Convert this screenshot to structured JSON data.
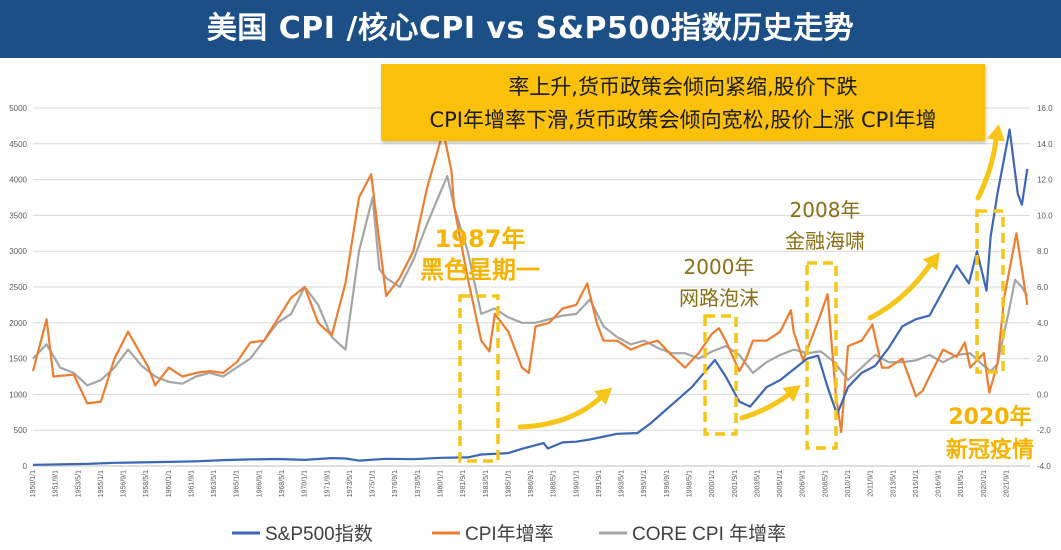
{
  "title": "美国 CPI /核心CPI vs S&P500指数历史走势",
  "callout": {
    "line1": "率上升,货币政策会倾向紧缩,股价下跌",
    "line2": "CPI年增率下滑,货币政策会倾向宽松,股价上涨 CPI年增"
  },
  "annotations": {
    "black_monday_year": "1987年",
    "black_monday_name": "黑色星期一",
    "dotcom_year": "2000年",
    "dotcom_name": "网路泡沫",
    "gfc_year": "2008年",
    "gfc_name": "金融海啸",
    "covid_year": "2020年",
    "covid_name": "新冠疫情"
  },
  "colors": {
    "title_bg": "#1b4f86",
    "callout_bg": "#fbc10a",
    "sp500": "#3b67b5",
    "cpi": "#ec7d31",
    "core_cpi": "#a5a5a5",
    "highlight": "#f5c518",
    "annotation_gold": "#f5b400",
    "annotation_olive": "#8a6e14"
  },
  "chart_data": {
    "type": "line",
    "x_range": [
      "1950/1/1",
      "2022/12/1"
    ],
    "y_left": {
      "range": [
        0,
        5000
      ],
      "ticks": [
        "0",
        "500",
        "1000",
        "1500",
        "2000",
        "2500",
        "3000",
        "3500",
        "4000",
        "4500",
        "5000"
      ]
    },
    "y_right": {
      "range": [
        -4.0,
        16.0
      ],
      "ticks": [
        "-4.0",
        "-2.0",
        "0.0",
        "2.0",
        "4.0",
        "6.0",
        "8.0",
        "10.0",
        "12.0",
        "14.0",
        "16.0"
      ]
    },
    "x_tick_labels": [
      "1950/1/1",
      "1951/9/1",
      "1953/5/1",
      "1955/1/1",
      "1956/9/1",
      "1958/5/1",
      "1960/1/1",
      "1961/9/1",
      "1963/5/1",
      "1965/1/1",
      "1966/9/1",
      "1968/5/1",
      "1970/1/1",
      "1971/9/1",
      "1973/5/1",
      "1975/1/1",
      "1976/9/1",
      "1978/5/1",
      "1980/1/1",
      "1981/9/1",
      "1983/5/1",
      "1985/1/1",
      "1986/9/1",
      "1988/5/1",
      "1990/1/1",
      "1991/9/1",
      "1993/5/1",
      "1995/1/1",
      "1996/9/1",
      "1998/5/1",
      "2000/1/1",
      "2001/9/1",
      "2003/5/1",
      "2005/1/1",
      "2006/9/1",
      "2008/5/1",
      "2010/1/1",
      "2011/9/1",
      "2013/5/1",
      "2015/1/1",
      "2016/9/1",
      "2018/5/1",
      "2020/1/1",
      "2021/9/1"
    ],
    "series": [
      {
        "name": "S&P500指数",
        "axis": "left",
        "points": [
          [
            1950,
            17
          ],
          [
            1952,
            24
          ],
          [
            1954,
            30
          ],
          [
            1956,
            45
          ],
          [
            1958,
            50
          ],
          [
            1960,
            57
          ],
          [
            1962,
            65
          ],
          [
            1964,
            82
          ],
          [
            1966,
            92
          ],
          [
            1968,
            98
          ],
          [
            1970,
            85
          ],
          [
            1972,
            110
          ],
          [
            1973,
            105
          ],
          [
            1974,
            75
          ],
          [
            1976,
            100
          ],
          [
            1978,
            95
          ],
          [
            1980,
            115
          ],
          [
            1982,
            120
          ],
          [
            1983,
            160
          ],
          [
            1985,
            180
          ],
          [
            1986,
            240
          ],
          [
            1987.6,
            320
          ],
          [
            1987.9,
            245
          ],
          [
            1989,
            330
          ],
          [
            1990,
            340
          ],
          [
            1991,
            370
          ],
          [
            1993,
            450
          ],
          [
            1994.5,
            460
          ],
          [
            1995.5,
            600
          ],
          [
            1997,
            850
          ],
          [
            1998.5,
            1100
          ],
          [
            2000.2,
            1480
          ],
          [
            2001,
            1250
          ],
          [
            2002,
            900
          ],
          [
            2002.8,
            830
          ],
          [
            2004,
            1100
          ],
          [
            2005,
            1200
          ],
          [
            2007,
            1500
          ],
          [
            2007.8,
            1540
          ],
          [
            2008.5,
            1100
          ],
          [
            2009.2,
            720
          ],
          [
            2010,
            1100
          ],
          [
            2011,
            1300
          ],
          [
            2012,
            1400
          ],
          [
            2013,
            1650
          ],
          [
            2014,
            1950
          ],
          [
            2015,
            2050
          ],
          [
            2016,
            2100
          ],
          [
            2017,
            2450
          ],
          [
            2018,
            2800
          ],
          [
            2018.9,
            2550
          ],
          [
            2019.5,
            3000
          ],
          [
            2020.2,
            2450
          ],
          [
            2020.5,
            3200
          ],
          [
            2021,
            3800
          ],
          [
            2021.9,
            4700
          ],
          [
            2022.5,
            3800
          ],
          [
            2022.8,
            3650
          ],
          [
            2023.2,
            4150
          ]
        ]
      },
      {
        "name": "CPI年增率",
        "axis": "right",
        "points": [
          [
            1950,
            1.3
          ],
          [
            1951,
            4.2
          ],
          [
            1951.5,
            1.0
          ],
          [
            1953,
            1.1
          ],
          [
            1954,
            -0.5
          ],
          [
            1955,
            -0.4
          ],
          [
            1956,
            2.0
          ],
          [
            1957,
            3.5
          ],
          [
            1958.5,
            1.5
          ],
          [
            1959,
            0.5
          ],
          [
            1960,
            1.5
          ],
          [
            1961,
            1.0
          ],
          [
            1962,
            1.2
          ],
          [
            1963,
            1.3
          ],
          [
            1964,
            1.2
          ],
          [
            1965,
            1.8
          ],
          [
            1966,
            2.9
          ],
          [
            1967,
            3.0
          ],
          [
            1968,
            4.2
          ],
          [
            1969,
            5.4
          ],
          [
            1970,
            6.0
          ],
          [
            1971,
            4.0
          ],
          [
            1972,
            3.3
          ],
          [
            1973,
            6.2
          ],
          [
            1974,
            11.0
          ],
          [
            1974.9,
            12.3
          ],
          [
            1975.5,
            8.5
          ],
          [
            1976,
            5.5
          ],
          [
            1977,
            6.5
          ],
          [
            1978,
            8.0
          ],
          [
            1979,
            11.5
          ],
          [
            1980.2,
            14.7
          ],
          [
            1980.8,
            12.5
          ],
          [
            1981,
            10.5
          ],
          [
            1982,
            6.5
          ],
          [
            1983,
            3.0
          ],
          [
            1983.6,
            2.4
          ],
          [
            1984,
            4.5
          ],
          [
            1985,
            3.5
          ],
          [
            1986,
            1.5
          ],
          [
            1986.5,
            1.2
          ],
          [
            1987,
            3.8
          ],
          [
            1988,
            4.0
          ],
          [
            1989,
            4.8
          ],
          [
            1990,
            5.0
          ],
          [
            1990.8,
            6.2
          ],
          [
            1991.5,
            4.0
          ],
          [
            1992,
            3.0
          ],
          [
            1993,
            3.0
          ],
          [
            1994,
            2.5
          ],
          [
            1995,
            2.8
          ],
          [
            1996,
            3.0
          ],
          [
            1997,
            2.2
          ],
          [
            1998,
            1.5
          ],
          [
            1999,
            2.3
          ],
          [
            2000,
            3.4
          ],
          [
            2000.5,
            3.7
          ],
          [
            2001,
            3.0
          ],
          [
            2002,
            1.3
          ],
          [
            2002.5,
            2.0
          ],
          [
            2003,
            3.0
          ],
          [
            2004,
            3.0
          ],
          [
            2005,
            3.5
          ],
          [
            2005.8,
            4.7
          ],
          [
            2006,
            3.5
          ],
          [
            2006.7,
            1.9
          ],
          [
            2007,
            2.5
          ],
          [
            2007.9,
            4.3
          ],
          [
            2008.5,
            5.6
          ],
          [
            2009.1,
            0.0
          ],
          [
            2009.5,
            -2.1
          ],
          [
            2010,
            2.7
          ],
          [
            2011,
            3.0
          ],
          [
            2011.8,
            3.9
          ],
          [
            2012.5,
            1.5
          ],
          [
            2013,
            1.5
          ],
          [
            2014,
            2.0
          ],
          [
            2015,
            -0.1
          ],
          [
            2015.5,
            0.2
          ],
          [
            2016,
            1.0
          ],
          [
            2017,
            2.5
          ],
          [
            2018,
            2.1
          ],
          [
            2018.6,
            2.9
          ],
          [
            2019,
            1.5
          ],
          [
            2020,
            2.3
          ],
          [
            2020.4,
            0.1
          ],
          [
            2021,
            1.7
          ],
          [
            2021.5,
            5.4
          ],
          [
            2022.4,
            9.0
          ],
          [
            2022.9,
            6.5
          ],
          [
            2023.2,
            5.0
          ]
        ]
      },
      {
        "name": "CORE CPI 年增率",
        "axis": "right",
        "points": [
          [
            1950,
            2.0
          ],
          [
            1951,
            2.8
          ],
          [
            1952,
            1.5
          ],
          [
            1953,
            1.2
          ],
          [
            1954,
            0.5
          ],
          [
            1955,
            0.8
          ],
          [
            1956,
            1.5
          ],
          [
            1957,
            2.5
          ],
          [
            1958,
            1.6
          ],
          [
            1959,
            1.0
          ],
          [
            1960,
            0.7
          ],
          [
            1961,
            0.6
          ],
          [
            1962,
            1.0
          ],
          [
            1963,
            1.2
          ],
          [
            1964,
            1.0
          ],
          [
            1965,
            1.5
          ],
          [
            1966,
            2.0
          ],
          [
            1967,
            3.0
          ],
          [
            1968,
            4.0
          ],
          [
            1969,
            4.5
          ],
          [
            1970,
            6.0
          ],
          [
            1971,
            5.0
          ],
          [
            1972,
            3.2
          ],
          [
            1973,
            2.5
          ],
          [
            1974,
            8.0
          ],
          [
            1975,
            11.0
          ],
          [
            1975.5,
            7.0
          ],
          [
            1976,
            6.5
          ],
          [
            1977,
            6.0
          ],
          [
            1978,
            7.5
          ],
          [
            1979,
            9.5
          ],
          [
            1980.5,
            12.2
          ],
          [
            1981,
            10.5
          ],
          [
            1982,
            8.0
          ],
          [
            1983,
            4.5
          ],
          [
            1984,
            4.8
          ],
          [
            1985,
            4.3
          ],
          [
            1986,
            4.0
          ],
          [
            1987,
            4.0
          ],
          [
            1988,
            4.2
          ],
          [
            1989,
            4.4
          ],
          [
            1990,
            4.5
          ],
          [
            1991,
            5.3
          ],
          [
            1992,
            3.8
          ],
          [
            1993,
            3.2
          ],
          [
            1994,
            2.8
          ],
          [
            1995,
            3.0
          ],
          [
            1996,
            2.6
          ],
          [
            1997,
            2.3
          ],
          [
            1998,
            2.3
          ],
          [
            1999,
            2.0
          ],
          [
            2000,
            2.4
          ],
          [
            2001,
            2.7
          ],
          [
            2002,
            2.2
          ],
          [
            2003,
            1.2
          ],
          [
            2004,
            1.8
          ],
          [
            2005,
            2.2
          ],
          [
            2006,
            2.5
          ],
          [
            2007,
            2.3
          ],
          [
            2008,
            2.4
          ],
          [
            2009,
            1.8
          ],
          [
            2010,
            0.8
          ],
          [
            2011,
            1.5
          ],
          [
            2012,
            2.2
          ],
          [
            2013,
            1.8
          ],
          [
            2014,
            1.8
          ],
          [
            2015,
            1.9
          ],
          [
            2016,
            2.2
          ],
          [
            2017,
            1.8
          ],
          [
            2018,
            2.2
          ],
          [
            2019,
            2.3
          ],
          [
            2020,
            1.6
          ],
          [
            2020.5,
            1.3
          ],
          [
            2021,
            1.7
          ],
          [
            2021.8,
            4.5
          ],
          [
            2022.3,
            6.4
          ],
          [
            2022.8,
            6.0
          ],
          [
            2023.2,
            5.5
          ]
        ]
      }
    ],
    "legend": [
      "S&P500指数",
      "CPI年增率",
      "CORE CPI 年增率"
    ],
    "legend_position": "bottom",
    "grid": true
  }
}
